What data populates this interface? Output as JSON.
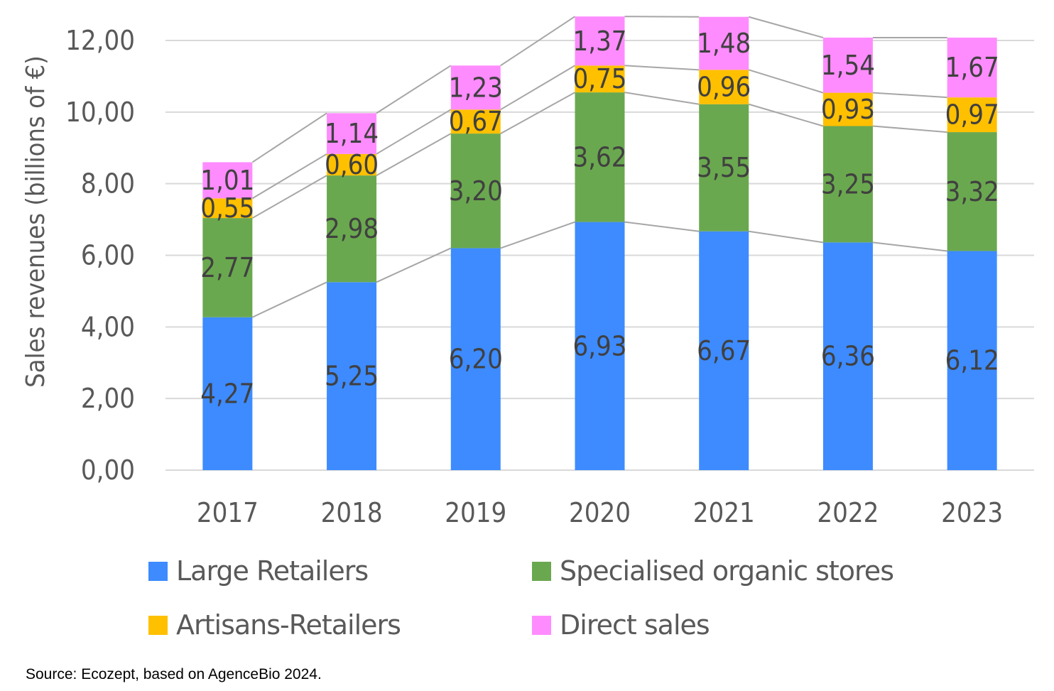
{
  "chart_data": {
    "type": "bar",
    "stacked": true,
    "title": "",
    "xlabel": "",
    "ylabel": "Sales revenues (billions of €)",
    "ylim": [
      0,
      12
    ],
    "yticks": [
      0,
      2,
      4,
      6,
      8,
      10,
      12
    ],
    "ytick_labels": [
      "0,00",
      "2,00",
      "4,00",
      "6,00",
      "8,00",
      "10,00",
      "12,00"
    ],
    "grid": true,
    "series_lines": true,
    "categories": [
      "2017",
      "2018",
      "2019",
      "2020",
      "2021",
      "2022",
      "2023"
    ],
    "series": [
      {
        "name": "Large Retailers",
        "color": "#3d8bff",
        "values": [
          4.27,
          5.25,
          6.2,
          6.93,
          6.67,
          6.36,
          6.12
        ],
        "labels": [
          "4,27",
          "5,25",
          "6,20",
          "6,93",
          "6,67",
          "6,36",
          "6,12"
        ]
      },
      {
        "name": "Specialised organic stores",
        "color": "#6aa84f",
        "values": [
          2.77,
          2.98,
          3.2,
          3.62,
          3.55,
          3.25,
          3.32
        ],
        "labels": [
          "2,77",
          "2,98",
          "3,20",
          "3,62",
          "3,55",
          "3,25",
          "3,32"
        ]
      },
      {
        "name": "Artisans-Retailers",
        "color": "#ffc000",
        "values": [
          0.55,
          0.6,
          0.67,
          0.75,
          0.96,
          0.93,
          0.97
        ],
        "labels": [
          "0,55",
          "0,60",
          "0,67",
          "0,75",
          "0,96",
          "0,93",
          "0,97"
        ]
      },
      {
        "name": "Direct sales",
        "color": "#ff8cff",
        "values": [
          1.01,
          1.14,
          1.23,
          1.37,
          1.48,
          1.54,
          1.67
        ],
        "labels": [
          "1,01",
          "1,14",
          "1,23",
          "1,37",
          "1,48",
          "1,54",
          "1,67"
        ]
      }
    ],
    "legend": {
      "placement": "bottom",
      "items": [
        {
          "label": "Large Retailers",
          "color": "#3d8bff"
        },
        {
          "label": "Specialised organic stores",
          "color": "#6aa84f"
        },
        {
          "label": "Artisans-Retailers",
          "color": "#ffc000"
        },
        {
          "label": "Direct sales",
          "color": "#ff8cff"
        }
      ]
    }
  },
  "source_note": "Source: Ecozept, based on AgenceBio 2024."
}
